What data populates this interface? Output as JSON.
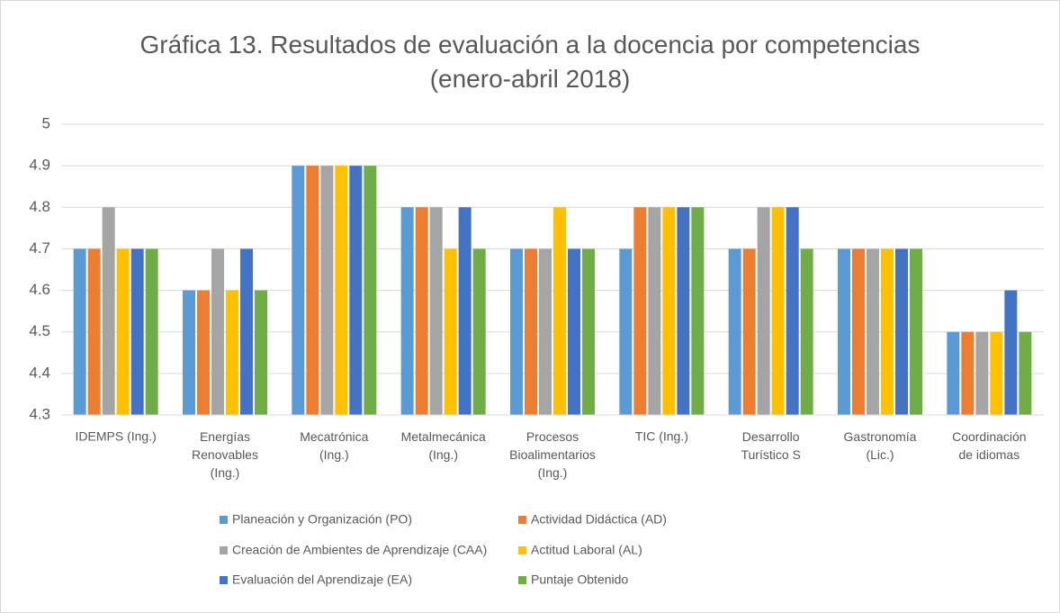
{
  "chart_data": {
    "type": "bar",
    "title": "Gráfica 13. Resultados de evaluación a la docencia por competencias\n(enero-abril 2018)",
    "categories": [
      "IDEMPS  (Ing.)",
      "Energías\nRenovables\n(Ing.)",
      "Mecatrónica\n(Ing.)",
      "Metalmecánica\n(Ing.)",
      "Procesos\nBioalimentarios\n(Ing.)",
      "TIC (Ing.)",
      "Desarrollo\nTurístico S",
      "Gastronomía\n(Lic.)",
      "Coordinación\nde idiomas"
    ],
    "series": [
      {
        "name": "Planeación y Organización (PO)",
        "color": "#5b9bd5",
        "values": [
          4.7,
          4.6,
          4.9,
          4.8,
          4.7,
          4.7,
          4.7,
          4.7,
          4.5
        ]
      },
      {
        "name": "Actividad Didáctica (AD)",
        "color": "#ed7d31",
        "values": [
          4.7,
          4.6,
          4.9,
          4.8,
          4.7,
          4.8,
          4.7,
          4.7,
          4.5
        ]
      },
      {
        "name": "Creación de Ambientes de Aprendizaje (CAA)",
        "color": "#a5a5a5",
        "values": [
          4.8,
          4.7,
          4.9,
          4.8,
          4.7,
          4.8,
          4.8,
          4.7,
          4.5
        ]
      },
      {
        "name": "Actitud Laboral (AL)",
        "color": "#ffc000",
        "values": [
          4.7,
          4.6,
          4.9,
          4.7,
          4.8,
          4.8,
          4.8,
          4.7,
          4.5
        ]
      },
      {
        "name": "Evaluación del Aprendizaje (EA)",
        "color": "#4472c4",
        "values": [
          4.7,
          4.7,
          4.9,
          4.8,
          4.7,
          4.8,
          4.8,
          4.7,
          4.6
        ]
      },
      {
        "name": "Puntaje Obtenido",
        "color": "#70ad47",
        "values": [
          4.7,
          4.6,
          4.9,
          4.7,
          4.7,
          4.8,
          4.7,
          4.7,
          4.5
        ]
      }
    ],
    "ylim": [
      4.3,
      5
    ],
    "yticks": [
      4.3,
      4.4,
      4.5,
      4.6,
      4.7,
      4.8,
      4.9,
      5
    ],
    "grid": true,
    "legend": "bottom"
  }
}
